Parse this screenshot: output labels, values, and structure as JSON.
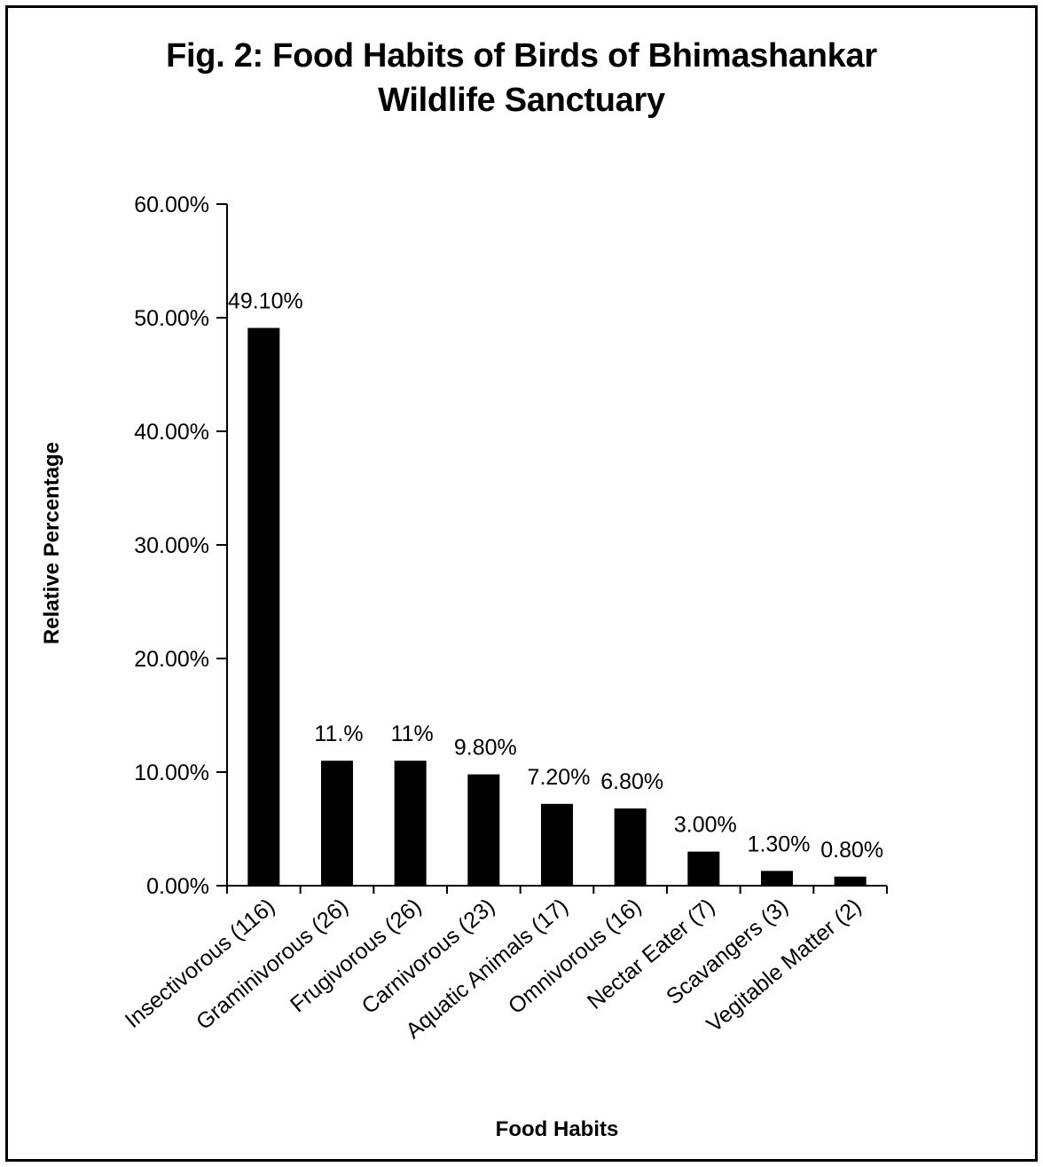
{
  "chart_data": {
    "type": "bar",
    "title_line1": "Fig. 2: Food Habits of Birds of Bhimashankar",
    "title_line2": "Wildlife Sanctuary",
    "xlabel": "Food Habits",
    "ylabel": "Relative Percentage",
    "ylim": [
      0,
      60
    ],
    "yticks": [
      0,
      10,
      20,
      30,
      40,
      50,
      60
    ],
    "ytick_labels": [
      "0.00%",
      "10.00%",
      "20.00%",
      "30.00%",
      "40.00%",
      "50.00%",
      "60.00%"
    ],
    "categories": [
      "Insectivorous (116)",
      "Graminivorous (26)",
      "Frugivorous (26)",
      "Carnivorous (23)",
      "Aquatic Animals (17)",
      "Omnivorous (16)",
      "Nectar Eater (7)",
      "Scavangers (3)",
      "Vegitable Matter (2)"
    ],
    "values": [
      49.1,
      11,
      11,
      9.8,
      7.2,
      6.8,
      3.0,
      1.3,
      0.8
    ],
    "data_labels": [
      "49.10%",
      "11.%",
      "11%",
      "9.80%",
      "7.20%",
      "6.80%",
      "3.00%",
      "1.30%",
      "0.80%"
    ],
    "bar_color": "#000000",
    "grid": false,
    "legend": "none"
  }
}
